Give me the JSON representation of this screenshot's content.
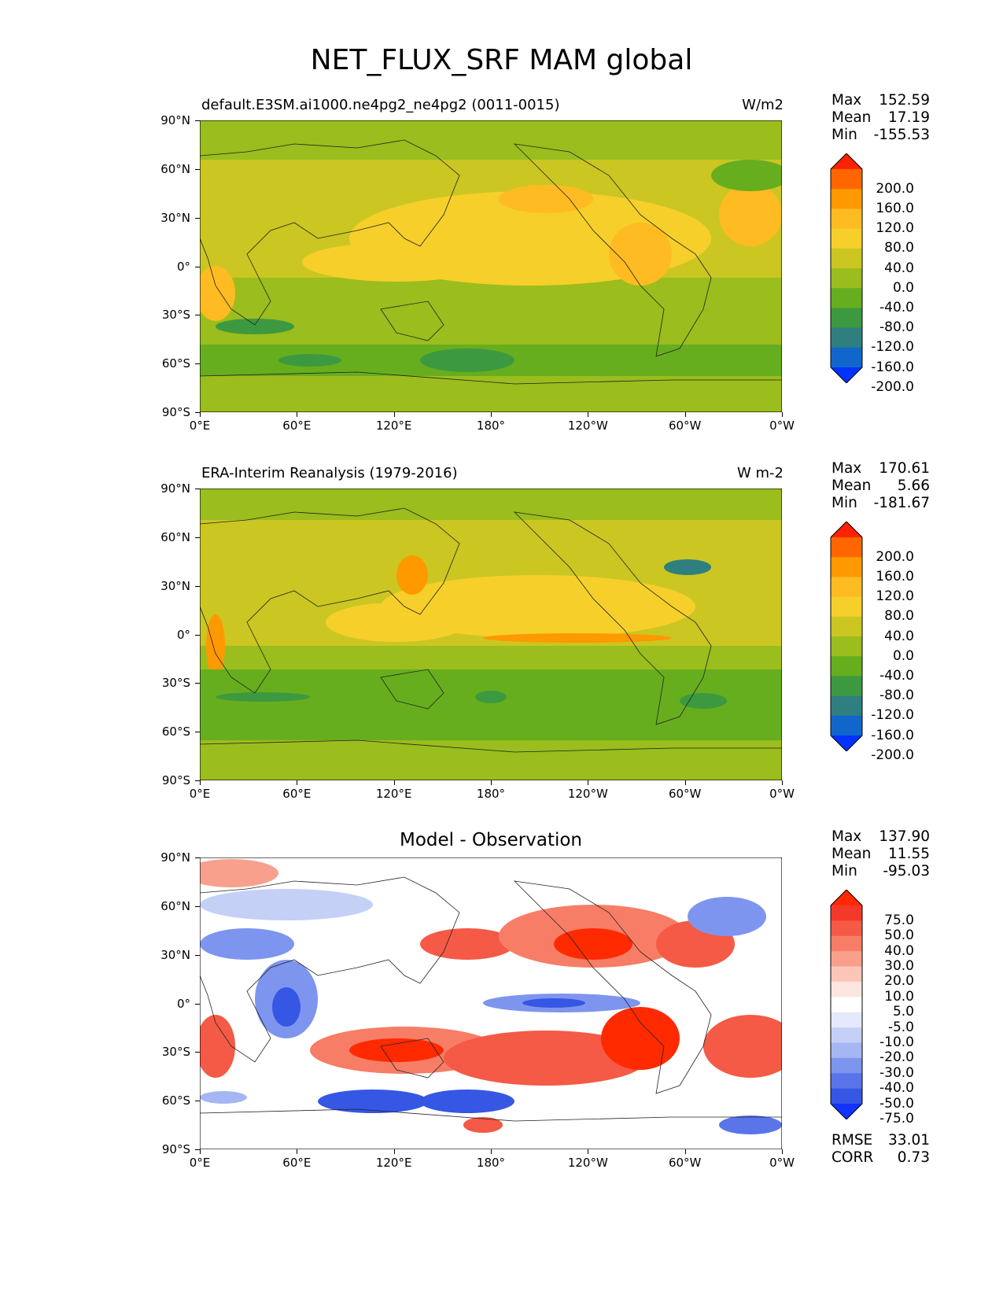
{
  "figure": {
    "title": "NET_FLUX_SRF MAM global"
  },
  "axes": {
    "lat_ticks": [
      "90°N",
      "60°N",
      "30°N",
      "0°",
      "30°S",
      "60°S",
      "90°S"
    ],
    "lon_ticks": [
      "0°E",
      "60°E",
      "120°E",
      "180°",
      "120°W",
      "60°W",
      "0°W"
    ]
  },
  "panels": [
    {
      "id": "test",
      "title_left": "default.E3SM.ai1000.ne4pg2_ne4pg2 (0011-0015)",
      "title_right": "W/m2",
      "title_center": "",
      "stats": {
        "max_label": "Max",
        "max": "152.59",
        "mean_label": "Mean",
        "mean": "17.19",
        "min_label": "Min",
        "min": "-155.53"
      },
      "colorbar": {
        "levels": [
          "200.0",
          "160.0",
          "120.0",
          "80.0",
          "40.0",
          "0.0",
          "-40.0",
          "-80.0",
          "-120.0",
          "-160.0",
          "-200.0"
        ],
        "colors": [
          "#ff2200",
          "#ff6600",
          "#ff9900",
          "#ffbb22",
          "#f6cf2a",
          "#cbc622",
          "#9bbd1d",
          "#66ae1e",
          "#3d9940",
          "#2f7f80",
          "#1166cc",
          "#0033ff"
        ]
      }
    },
    {
      "id": "ref",
      "title_left": "ERA-Interim Reanalysis (1979-2016)",
      "title_right": "W m-2",
      "title_center": "",
      "stats": {
        "max_label": "Max",
        "max": "170.61",
        "mean_label": "Mean",
        "mean": "5.66",
        "min_label": "Min",
        "min": "-181.67"
      },
      "colorbar": {
        "levels": [
          "200.0",
          "160.0",
          "120.0",
          "80.0",
          "40.0",
          "0.0",
          "-40.0",
          "-80.0",
          "-120.0",
          "-160.0",
          "-200.0"
        ],
        "colors": [
          "#ff2200",
          "#ff6600",
          "#ff9900",
          "#ffbb22",
          "#f6cf2a",
          "#cbc622",
          "#9bbd1d",
          "#66ae1e",
          "#3d9940",
          "#2f7f80",
          "#1166cc",
          "#0033ff"
        ]
      }
    },
    {
      "id": "diff",
      "title_left": "",
      "title_right": "",
      "title_center": "Model - Observation",
      "stats": {
        "max_label": "Max",
        "max": "137.90",
        "mean_label": "Mean",
        "mean": "11.55",
        "min_label": "Min",
        "min": "-95.03"
      },
      "colorbar": {
        "levels": [
          "75.0",
          "50.0",
          "40.0",
          "30.0",
          "20.0",
          "10.0",
          "5.0",
          "-5.0",
          "-10.0",
          "-20.0",
          "-30.0",
          "-40.0",
          "-50.0",
          "-75.0"
        ],
        "colors": [
          "#ff2a00",
          "#f4392b",
          "#f45a45",
          "#f77d66",
          "#f9a08c",
          "#fbc6b8",
          "#fde6e0",
          "#ffffff",
          "#e4e9fb",
          "#c5d0f7",
          "#a6b6f4",
          "#7e95ef",
          "#5a74ea",
          "#3656e4",
          "#1133ff"
        ]
      },
      "error_stats": {
        "rmse_label": "RMSE",
        "rmse": "33.01",
        "corr_label": "CORR",
        "corr": "0.73"
      }
    }
  ]
}
